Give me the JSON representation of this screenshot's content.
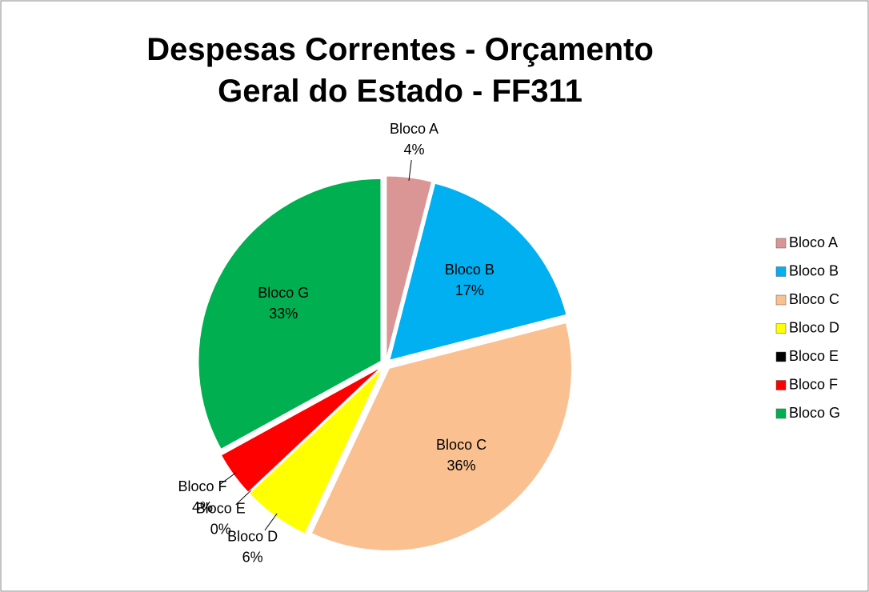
{
  "chart_data": {
    "type": "pie",
    "title": "Despesas Correntes - Orçamento Geral do Estado - FF311",
    "categories": [
      "Bloco A",
      "Bloco B",
      "Bloco C",
      "Bloco D",
      "Bloco E",
      "Bloco F",
      "Bloco G"
    ],
    "values": [
      4,
      17,
      36,
      6,
      0,
      4,
      33
    ],
    "value_labels": [
      "4%",
      "17%",
      "36%",
      "6%",
      "0%",
      "4%",
      "33%"
    ],
    "colors": [
      "#d99694",
      "#00b0f0",
      "#fac090",
      "#ffff00",
      "#000000",
      "#ff0000",
      "#00b050"
    ],
    "legend": "right"
  }
}
